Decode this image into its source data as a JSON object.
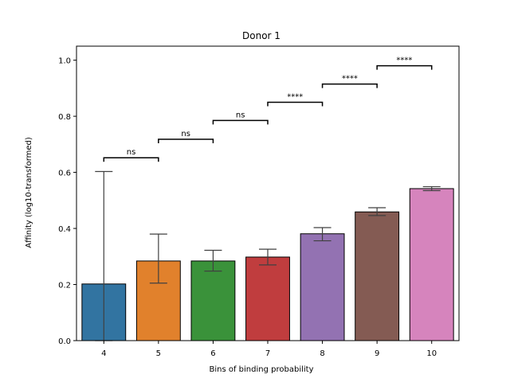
{
  "chart_data": {
    "type": "bar",
    "title": "Donor 1",
    "xlabel": "Bins of binding probability",
    "ylabel": "Affinity (log10-transformed)",
    "categories": [
      "4",
      "5",
      "6",
      "7",
      "8",
      "9",
      "10"
    ],
    "values": [
      0.202,
      0.284,
      0.284,
      0.298,
      0.381,
      0.459,
      0.542
    ],
    "error_low": [
      0.0,
      0.205,
      0.248,
      0.27,
      0.356,
      0.446,
      0.535
    ],
    "error_high": [
      0.603,
      0.38,
      0.322,
      0.326,
      0.403,
      0.474,
      0.549
    ],
    "colors": [
      "#3274a1",
      "#e1812c",
      "#3a923a",
      "#c03d3e",
      "#9372b2",
      "#845b53",
      "#d684bd"
    ],
    "ylim": [
      0,
      1.05
    ],
    "yticks": [
      "0.0",
      "0.2",
      "0.4",
      "0.6",
      "0.8",
      "1.0"
    ],
    "grid": false,
    "annotations": [
      {
        "from": "4",
        "to": "5",
        "y": 0.652,
        "label": "ns"
      },
      {
        "from": "5",
        "to": "6",
        "y": 0.718,
        "label": "ns"
      },
      {
        "from": "6",
        "to": "7",
        "y": 0.785,
        "label": "ns"
      },
      {
        "from": "7",
        "to": "8",
        "y": 0.85,
        "label": "****"
      },
      {
        "from": "8",
        "to": "9",
        "y": 0.915,
        "label": "****"
      },
      {
        "from": "9",
        "to": "10",
        "y": 0.98,
        "label": "****"
      }
    ]
  }
}
